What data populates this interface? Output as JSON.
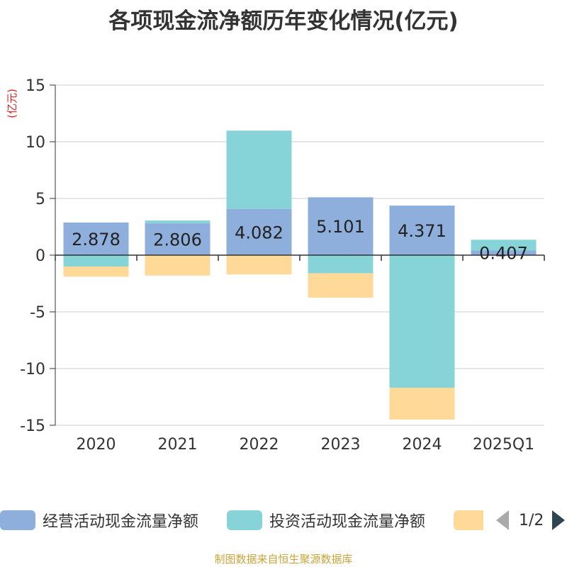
{
  "title": "各项现金流净额历年变化情况(亿元)",
  "unit_label": "(亿元)",
  "source": "制图数据来自恒生聚源数据库",
  "legend": {
    "items": [
      {
        "label": "经营活动现金流量净额",
        "color": "#8eaedb"
      },
      {
        "label": "投资活动现金流量净额",
        "color": "#87d4d8"
      },
      {
        "label": "",
        "color": "#fed997"
      }
    ],
    "page": "1/2"
  },
  "chart_data": {
    "type": "bar",
    "stacked": true,
    "categories": [
      "2020",
      "2021",
      "2022",
      "2023",
      "2024",
      "2025Q1"
    ],
    "ylim": [
      -15,
      15
    ],
    "yticks": [
      15,
      10,
      5,
      0,
      -5,
      -10,
      -15
    ],
    "grid": true,
    "legend_position": "bottom",
    "series": [
      {
        "name": "经营活动现金流量净额",
        "color": "#8eaedb",
        "values": [
          2.878,
          2.806,
          4.082,
          5.101,
          4.371,
          0.407
        ],
        "labels": [
          "2.878",
          "2.806",
          "4.082",
          "5.101",
          "4.371",
          "0.407"
        ]
      },
      {
        "name": "投资活动现金流量净额",
        "color": "#87d4d8",
        "values": [
          -1.0,
          0.25,
          6.9,
          -1.6,
          -11.7,
          0.95
        ]
      },
      {
        "color": "#fed997",
        "values": [
          -0.9,
          -1.8,
          -1.7,
          -2.15,
          -2.8,
          0
        ]
      }
    ]
  }
}
